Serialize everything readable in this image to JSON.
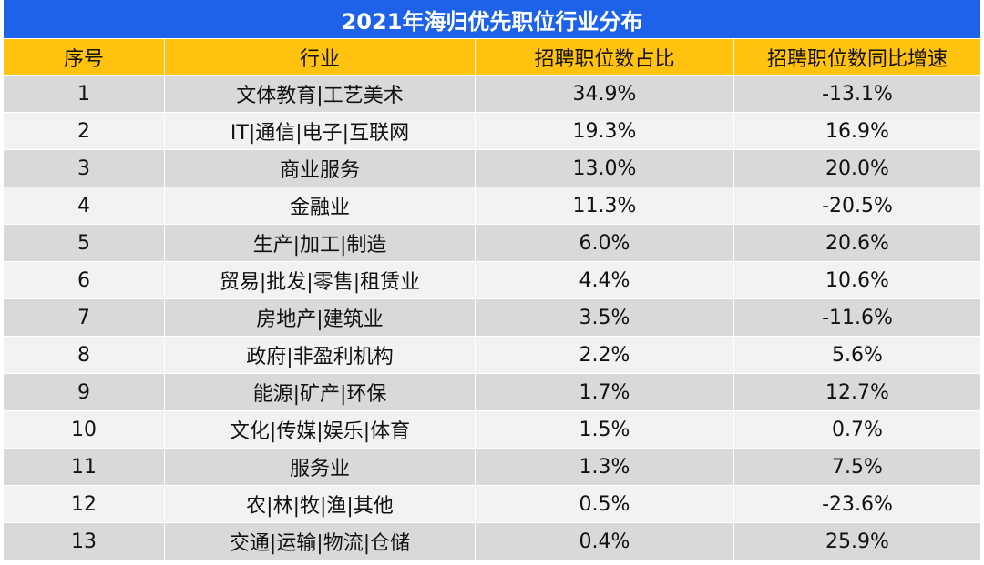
{
  "chart_data": {
    "type": "table",
    "title": "2021年海归优先职位行业分布",
    "columns": [
      "序号",
      "行业",
      "招聘职位数占比",
      "招聘职位数同比增速"
    ],
    "rows": [
      [
        "1",
        "文体教育|工艺美术",
        "34.9%",
        "-13.1%"
      ],
      [
        "2",
        "IT|通信|电子|互联网",
        "19.3%",
        "16.9%"
      ],
      [
        "3",
        "商业服务",
        "13.0%",
        "20.0%"
      ],
      [
        "4",
        "金融业",
        "11.3%",
        "-20.5%"
      ],
      [
        "5",
        "生产|加工|制造",
        "6.0%",
        "20.6%"
      ],
      [
        "6",
        "贸易|批发|零售|租赁业",
        "4.4%",
        "10.6%"
      ],
      [
        "7",
        "房地产|建筑业",
        "3.5%",
        "-11.6%"
      ],
      [
        "8",
        "政府|非盈利机构",
        "2.2%",
        "5.6%"
      ],
      [
        "9",
        "能源|矿产|环保",
        "1.7%",
        "12.7%"
      ],
      [
        "10",
        "文化|传媒|娱乐|体育",
        "1.5%",
        "0.7%"
      ],
      [
        "11",
        "服务业",
        "1.3%",
        "7.5%"
      ],
      [
        "12",
        "农|林|牧|渔|其他",
        "0.5%",
        "-23.6%"
      ],
      [
        "13",
        "交通|运输|物流|仓储",
        "0.4%",
        "25.9%"
      ]
    ]
  },
  "colors": {
    "title_bg": "#1e62ea",
    "header_bg": "#ffc20e",
    "row_odd_bg": "#d9d9d9",
    "row_even_bg": "#f2f2f2"
  }
}
